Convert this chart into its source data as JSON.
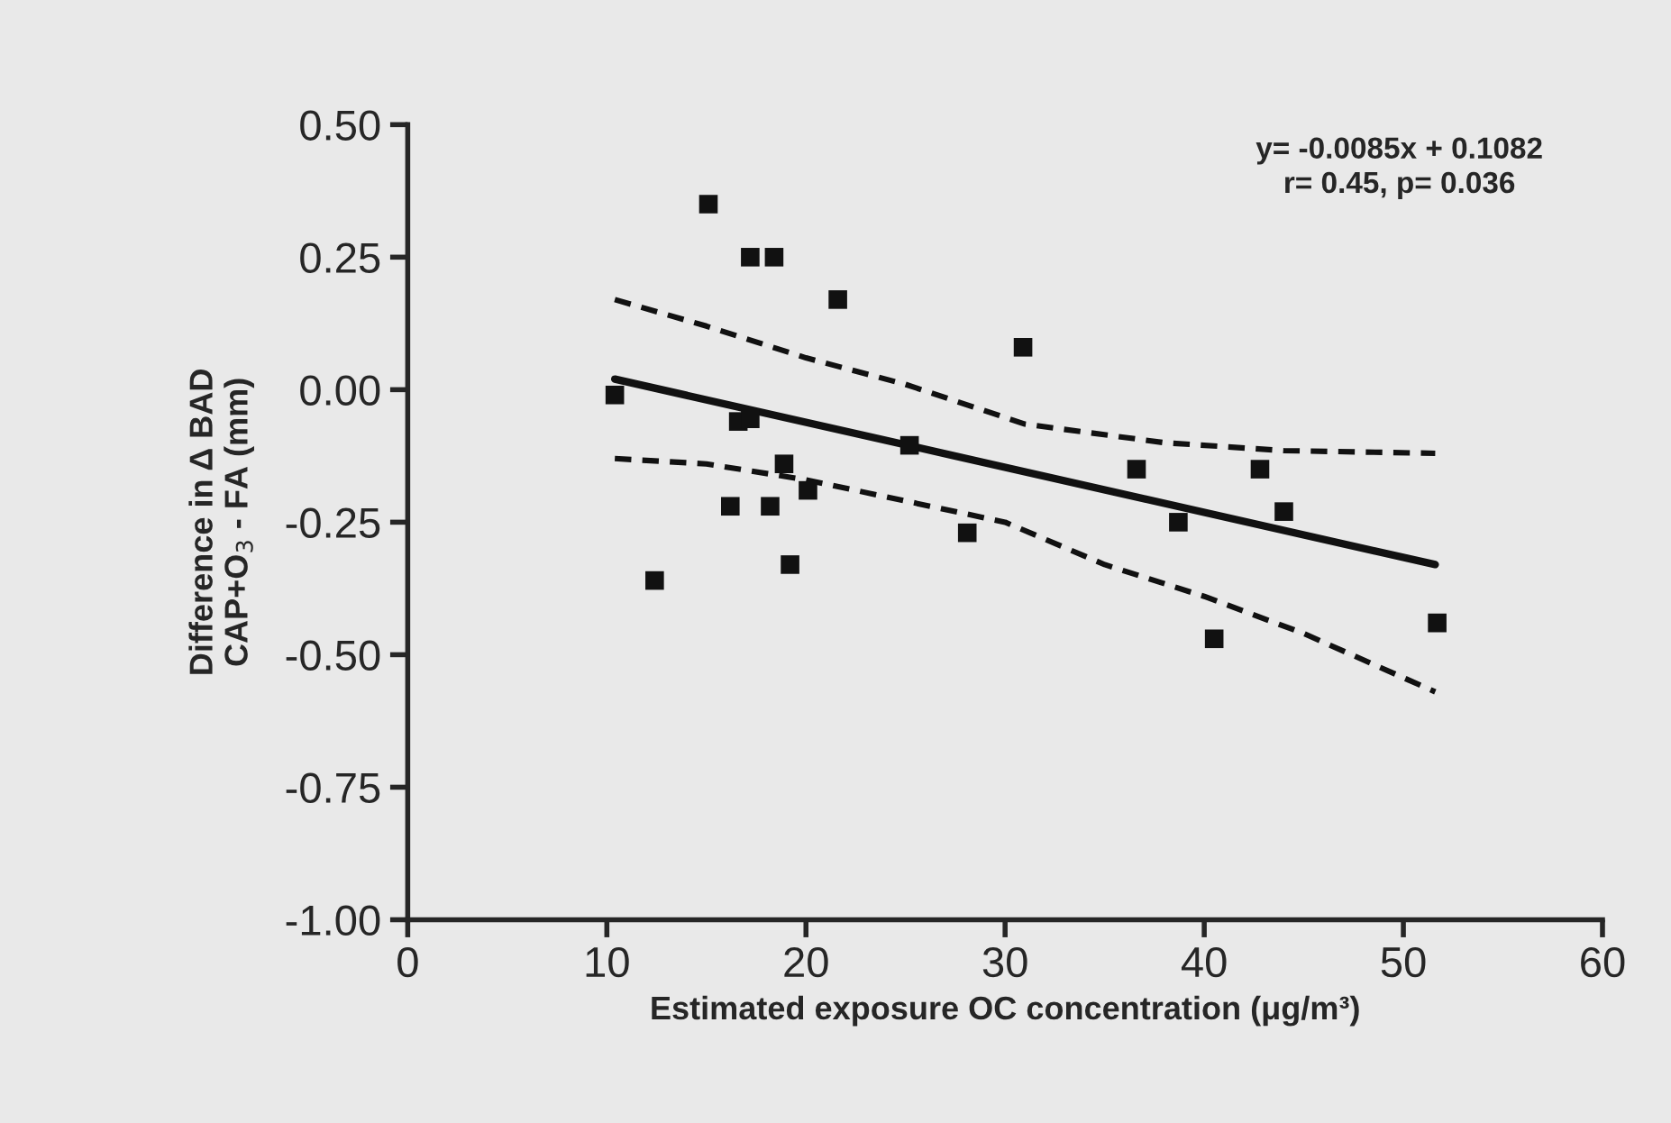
{
  "chart_data": {
    "type": "scatter",
    "xlabel": "Estimated exposure OC concentration (μg/m³)",
    "ylabel": "Difference in Δ BAD\nCAP+O$_{3}$ - FA (mm)",
    "annotations": [
      "y= -0.0085x + 0.1082\nr= 0.45, p= 0.036"
    ],
    "xlim": [
      0,
      60
    ],
    "xticks": [
      0,
      10,
      20,
      30,
      40,
      50,
      60
    ],
    "ylim": [
      -1.0,
      0.5
    ],
    "yticks": [
      {
        "value": 0.5,
        "label": "0.50"
      },
      {
        "value": 0.25,
        "label": "0.25"
      },
      {
        "value": 0,
        "label": "0.00"
      },
      {
        "value": -0.25,
        "label": "-0.25"
      },
      {
        "value": -0.5,
        "label": "-0.50"
      },
      {
        "value": -0.75,
        "label": "-0.75"
      },
      {
        "value": -1.0,
        "label": "-1.00"
      }
    ],
    "grid": false,
    "legend": false,
    "series": [
      {
        "type": "scatter",
        "color": "#111111",
        "marker": "square",
        "x": [
          10.4,
          12.4,
          15.1,
          17.2,
          18.4,
          21.6,
          16.2,
          16.6,
          17.2,
          18.2,
          18.9,
          20.1,
          19.2,
          25.2,
          28.1,
          30.9,
          36.6,
          38.7,
          42.8,
          44.0,
          40.5,
          51.7
        ],
        "values": [
          -0.01,
          -0.36,
          0.35,
          0.25,
          0.25,
          0.17,
          -0.22,
          -0.06,
          -0.055,
          -0.22,
          -0.14,
          -0.19,
          -0.33,
          -0.105,
          -0.27,
          0.08,
          -0.15,
          -0.25,
          -0.15,
          -0.23,
          -0.47,
          -0.44
        ]
      },
      {
        "type": "line",
        "color": "#111111",
        "line_style": "solid",
        "marker": "none",
        "x": [
          10.4,
          51.6
        ],
        "values": [
          0.02,
          -0.33
        ]
      },
      {
        "type": "line",
        "color": "#111111",
        "line_style": "dashed",
        "marker": "none",
        "x": [
          10.4,
          15,
          20,
          25,
          31,
          38,
          44,
          51.6
        ],
        "values": [
          0.17,
          0.12,
          0.06,
          0.01,
          -0.065,
          -0.1,
          -0.115,
          -0.12
        ]
      },
      {
        "type": "line",
        "color": "#111111",
        "line_style": "dashed",
        "marker": "none",
        "x": [
          10.4,
          15,
          20,
          25,
          30,
          35,
          40,
          45,
          51.6
        ],
        "values": [
          -0.13,
          -0.14,
          -0.17,
          -0.21,
          -0.25,
          -0.33,
          -0.39,
          -0.46,
          -0.57
        ]
      }
    ]
  }
}
